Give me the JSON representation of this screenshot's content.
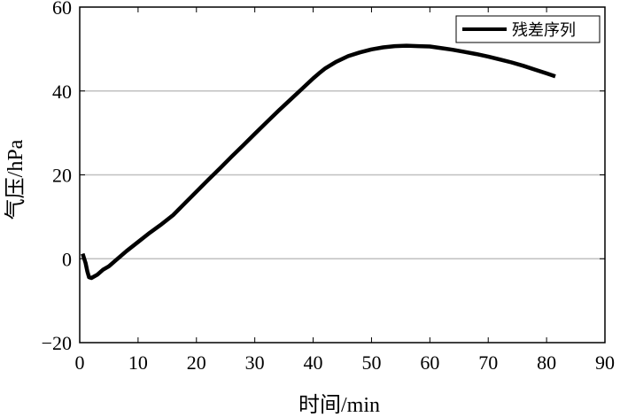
{
  "chart_data": {
    "type": "line",
    "xlabel": "时间/min",
    "ylabel": "气压/hPa",
    "xlim": [
      0,
      90
    ],
    "ylim": [
      -20,
      60
    ],
    "xticks": [
      0,
      10,
      20,
      30,
      40,
      50,
      60,
      70,
      80,
      90
    ],
    "yticks": [
      -20,
      0,
      20,
      40,
      60
    ],
    "xtick_labels": [
      "0",
      "10",
      "20",
      "30",
      "40",
      "50",
      "60",
      "70",
      "80",
      "90"
    ],
    "ytick_labels": [
      "−20",
      "0",
      "20",
      "40",
      "60"
    ],
    "grid": "horizontal",
    "grid_color": "#c0c0c0",
    "legend_position": "top-right",
    "series": [
      {
        "name": "残差序列",
        "color": "#000000",
        "x": [
          0.5,
          1,
          1.3,
          1.6,
          2,
          3,
          4,
          5,
          6,
          8,
          10,
          12,
          14,
          16,
          18,
          20,
          22,
          24,
          26,
          28,
          30,
          32,
          34,
          36,
          38,
          40,
          41,
          42,
          44,
          46,
          48,
          50,
          52,
          54,
          56,
          58,
          60,
          62,
          64,
          66,
          68,
          70,
          72,
          74,
          76,
          78,
          80,
          81.5
        ],
        "y": [
          1.2,
          -1.0,
          -3.0,
          -4.4,
          -4.6,
          -3.8,
          -2.6,
          -1.8,
          -0.6,
          1.8,
          4.0,
          6.2,
          8.2,
          10.4,
          13.2,
          16.0,
          18.8,
          21.5,
          24.3,
          27.0,
          29.8,
          32.5,
          35.2,
          37.8,
          40.4,
          43.0,
          44.2,
          45.3,
          47.0,
          48.3,
          49.2,
          49.9,
          50.4,
          50.7,
          50.8,
          50.7,
          50.6,
          50.2,
          49.8,
          49.3,
          48.8,
          48.2,
          47.5,
          46.8,
          46.0,
          45.1,
          44.2,
          43.5
        ]
      }
    ]
  }
}
